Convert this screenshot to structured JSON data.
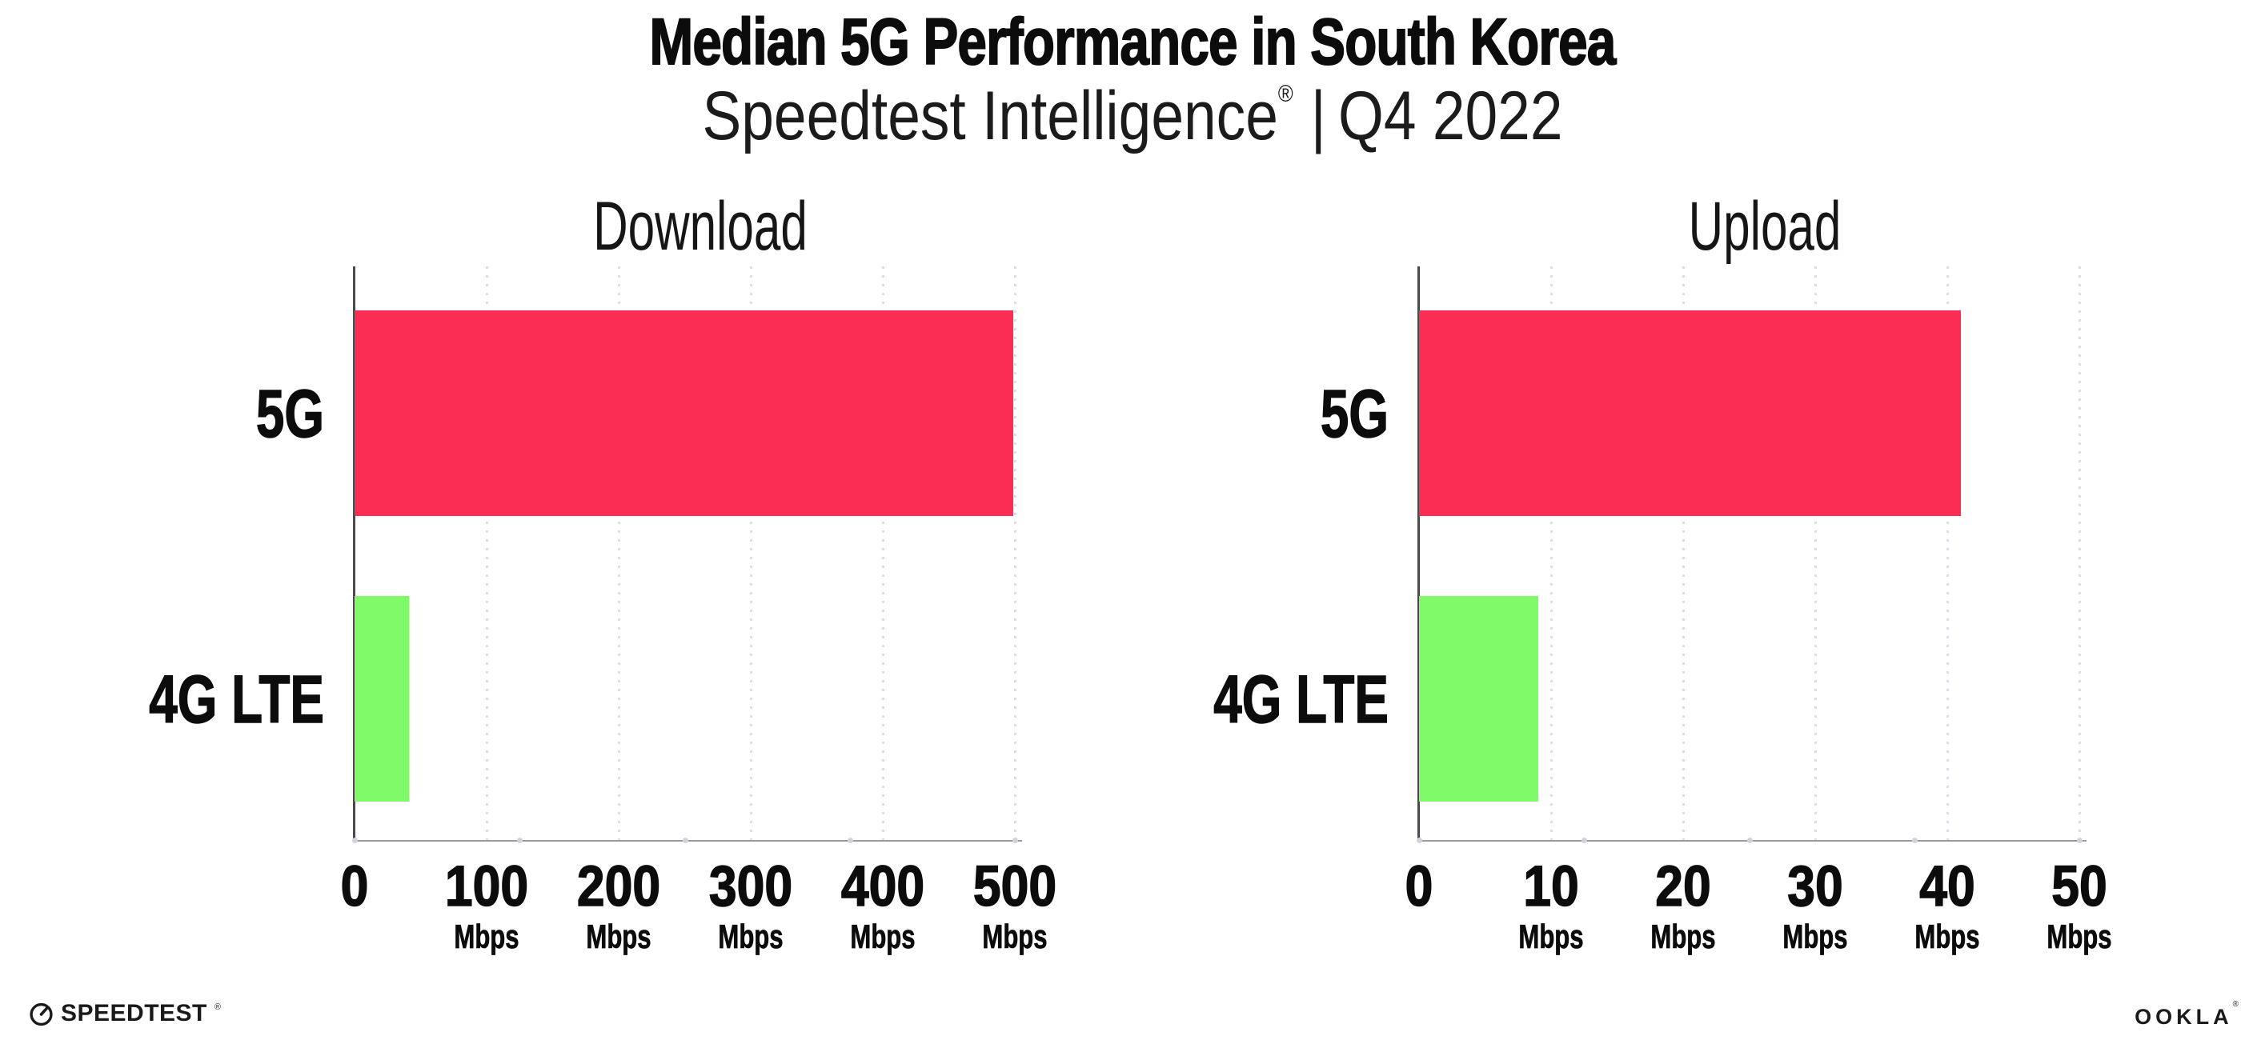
{
  "title": "Median 5G Performance in South Korea",
  "subtitle": {
    "brand": "Speedtest Intelligence",
    "registered": "®",
    "separator": "|",
    "period": "Q4 2022"
  },
  "footer": {
    "speedtest_wordmark": "SPEEDTEST",
    "speedtest_mark": "®",
    "ookla_wordmark": "OOKLA",
    "ookla_mark": "®",
    "speedtest_icon": "gauge-icon"
  },
  "colors": {
    "bar_5g": "#FC2D55",
    "bar_4g_lte": "#80FA68",
    "axis_line": "#4a4a4a",
    "baseline": "#9a9a9a",
    "gridline": "#dcdce6",
    "text": "#0c0c0c"
  },
  "chart_data": [
    {
      "type": "bar",
      "orientation": "horizontal",
      "title": "Download",
      "categories": [
        "5G",
        "4G LTE"
      ],
      "values": [
        499,
        41
      ],
      "unit": "Mbps",
      "xlim": [
        0,
        500
      ],
      "xticks": [
        0,
        100,
        200,
        300,
        400,
        500
      ],
      "tick_unit_label": "Mbps",
      "bar_colors": [
        "#FC2D55",
        "#80FA68"
      ],
      "grid": "dotted-vertical",
      "legend": "none"
    },
    {
      "type": "bar",
      "orientation": "horizontal",
      "title": "Upload",
      "categories": [
        "5G",
        "4G LTE"
      ],
      "values": [
        41,
        9
      ],
      "unit": "Mbps",
      "xlim": [
        0,
        50
      ],
      "xticks": [
        0,
        10,
        20,
        30,
        40,
        50
      ],
      "tick_unit_label": "Mbps",
      "bar_colors": [
        "#FC2D55",
        "#80FA68"
      ],
      "grid": "dotted-vertical",
      "legend": "none"
    }
  ]
}
